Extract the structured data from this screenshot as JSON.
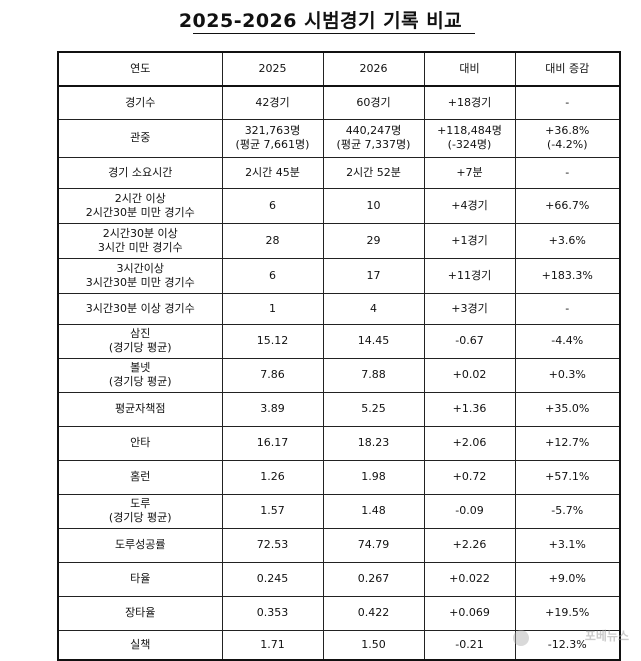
{
  "title": "2025-2026 시범경기 기록 비교",
  "columns": [
    "연도",
    "2025",
    "2026",
    "대비",
    "대비 증감"
  ],
  "rows": [
    {
      "label": "경기수",
      "v2025": "42경기",
      "v2026": "60경기",
      "diff": "+18경기",
      "pct": "-"
    },
    {
      "label": "관중",
      "v2025": "321,763명\n(평균 7,661명)",
      "v2026": "440,247명\n(평균 7,337명)",
      "diff": "+118,484명\n(-324명)",
      "pct": "+36.8%\n(-4.2%)"
    },
    {
      "label": "경기 소요시간",
      "v2025": "2시간 45분",
      "v2026": "2시간 52분",
      "diff": "+7분",
      "pct": "-"
    },
    {
      "label": "2시간 이상\n2시간30분 미만 경기수",
      "v2025": "6",
      "v2026": "10",
      "diff": "+4경기",
      "pct": "+66.7%"
    },
    {
      "label": "2시간30분 이상\n3시간 미만 경기수",
      "v2025": "28",
      "v2026": "29",
      "diff": "+1경기",
      "pct": "+3.6%"
    },
    {
      "label": "3시간이상\n3시간30분 미만 경기수",
      "v2025": "6",
      "v2026": "17",
      "diff": "+11경기",
      "pct": "+183.3%"
    },
    {
      "label": "3시간30분 이상 경기수",
      "v2025": "1",
      "v2026": "4",
      "diff": "+3경기",
      "pct": "-"
    },
    {
      "label": "삼진\n(경기당 평균)",
      "v2025": "15.12",
      "v2026": "14.45",
      "diff": "-0.67",
      "pct": "-4.4%"
    },
    {
      "label": "볼넷\n(경기당 평균)",
      "v2025": "7.86",
      "v2026": "7.88",
      "diff": "+0.02",
      "pct": "+0.3%"
    },
    {
      "label": "평균자책점",
      "v2025": "3.89",
      "v2026": "5.25",
      "diff": "+1.36",
      "pct": "+35.0%"
    },
    {
      "label": "안타",
      "v2025": "16.17",
      "v2026": "18.23",
      "diff": "+2.06",
      "pct": "+12.7%"
    },
    {
      "label": "홈런",
      "v2025": "1.26",
      "v2026": "1.98",
      "diff": "+0.72",
      "pct": "+57.1%"
    },
    {
      "label": "도루\n(경기당 평균)",
      "v2025": "1.57",
      "v2026": "1.48",
      "diff": "-0.09",
      "pct": "-5.7%"
    },
    {
      "label": "도루성공률",
      "v2025": "72.53",
      "v2026": "74.79",
      "diff": "+2.26",
      "pct": "+3.1%"
    },
    {
      "label": "타율",
      "v2025": "0.245",
      "v2026": "0.267",
      "diff": "+0.022",
      "pct": "+9.0%"
    },
    {
      "label": "장타율",
      "v2025": "0.353",
      "v2026": "0.422",
      "diff": "+0.069",
      "pct": "+19.5%"
    },
    {
      "label": "실책",
      "v2025": "1.71",
      "v2026": "1.50",
      "diff": "-0.21",
      "pct": "-12.3%"
    }
  ],
  "watermark": "포베뉴스"
}
